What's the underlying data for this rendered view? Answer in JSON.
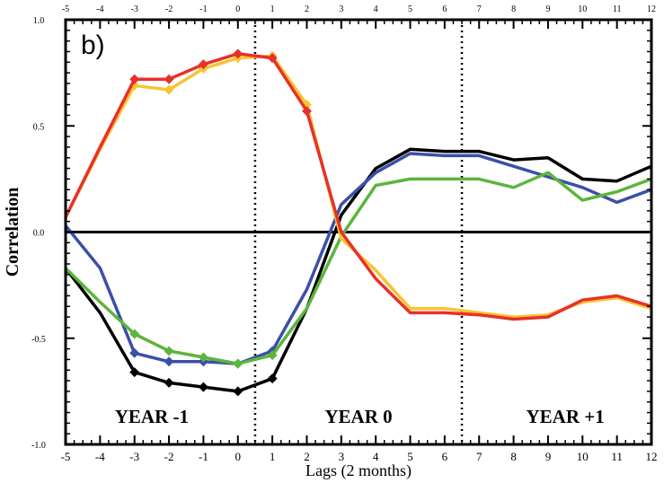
{
  "chart_data": {
    "type": "line",
    "panel_label": "b)",
    "xlabel": "Lags (2 months)",
    "ylabel": "Correlation",
    "xlim": [
      -5,
      12
    ],
    "ylim": [
      -1.0,
      1.0
    ],
    "x_ticks": [
      "-5",
      "-4",
      "-3",
      "-2",
      "-1",
      "0",
      "1",
      "2",
      "3",
      "4",
      "5",
      "6",
      "7",
      "8",
      "9",
      "10",
      "11",
      "12"
    ],
    "y_ticks": [
      "-1.0",
      "-0.5",
      "0.0",
      "0.5",
      "1.0"
    ],
    "zero_line": true,
    "dividers": [
      0.5,
      6.5
    ],
    "period_labels": [
      {
        "text": "YEAR -1",
        "x": -2.5
      },
      {
        "text": "YEAR 0",
        "x": 3.5
      },
      {
        "text": "YEAR +1",
        "x": 9.5
      }
    ],
    "x": [
      -5,
      -4,
      -3,
      -2,
      -1,
      0,
      1,
      2,
      3,
      4,
      5,
      6,
      7,
      8,
      9,
      10,
      11,
      12
    ],
    "series": [
      {
        "color": "#000000",
        "marker_range": [
          -3,
          1
        ],
        "values": [
          -0.17,
          -0.38,
          -0.66,
          -0.71,
          -0.73,
          -0.75,
          -0.69,
          -0.36,
          0.08,
          0.3,
          0.39,
          0.38,
          0.38,
          0.34,
          0.35,
          0.25,
          0.24,
          0.31
        ]
      },
      {
        "color": "#3a50a8",
        "marker_range": [
          -3,
          1
        ],
        "values": [
          0.03,
          -0.17,
          -0.57,
          -0.61,
          -0.61,
          -0.62,
          -0.56,
          -0.27,
          0.13,
          0.28,
          0.37,
          0.36,
          0.36,
          0.31,
          0.26,
          0.21,
          0.14,
          0.2
        ]
      },
      {
        "color": "#5cb53c",
        "marker_range": [
          -3,
          1
        ],
        "values": [
          -0.17,
          -0.33,
          -0.48,
          -0.56,
          -0.59,
          -0.62,
          -0.58,
          -0.36,
          -0.02,
          0.22,
          0.25,
          0.25,
          0.25,
          0.21,
          0.28,
          0.15,
          0.19,
          0.25
        ]
      },
      {
        "color": "#f7c531",
        "marker_range": [
          -3,
          2
        ],
        "values": [
          0.07,
          0.39,
          0.69,
          0.67,
          0.77,
          0.82,
          0.83,
          0.6,
          -0.03,
          -0.18,
          -0.36,
          -0.36,
          -0.38,
          -0.4,
          -0.39,
          -0.33,
          -0.31,
          -0.36
        ]
      },
      {
        "color": "#e8302a",
        "marker_range": [
          -3,
          2
        ],
        "values": [
          0.07,
          0.4,
          0.72,
          0.72,
          0.79,
          0.84,
          0.82,
          0.57,
          0.0,
          -0.22,
          -0.38,
          -0.38,
          -0.39,
          -0.41,
          -0.4,
          -0.32,
          -0.3,
          -0.35
        ]
      }
    ]
  }
}
